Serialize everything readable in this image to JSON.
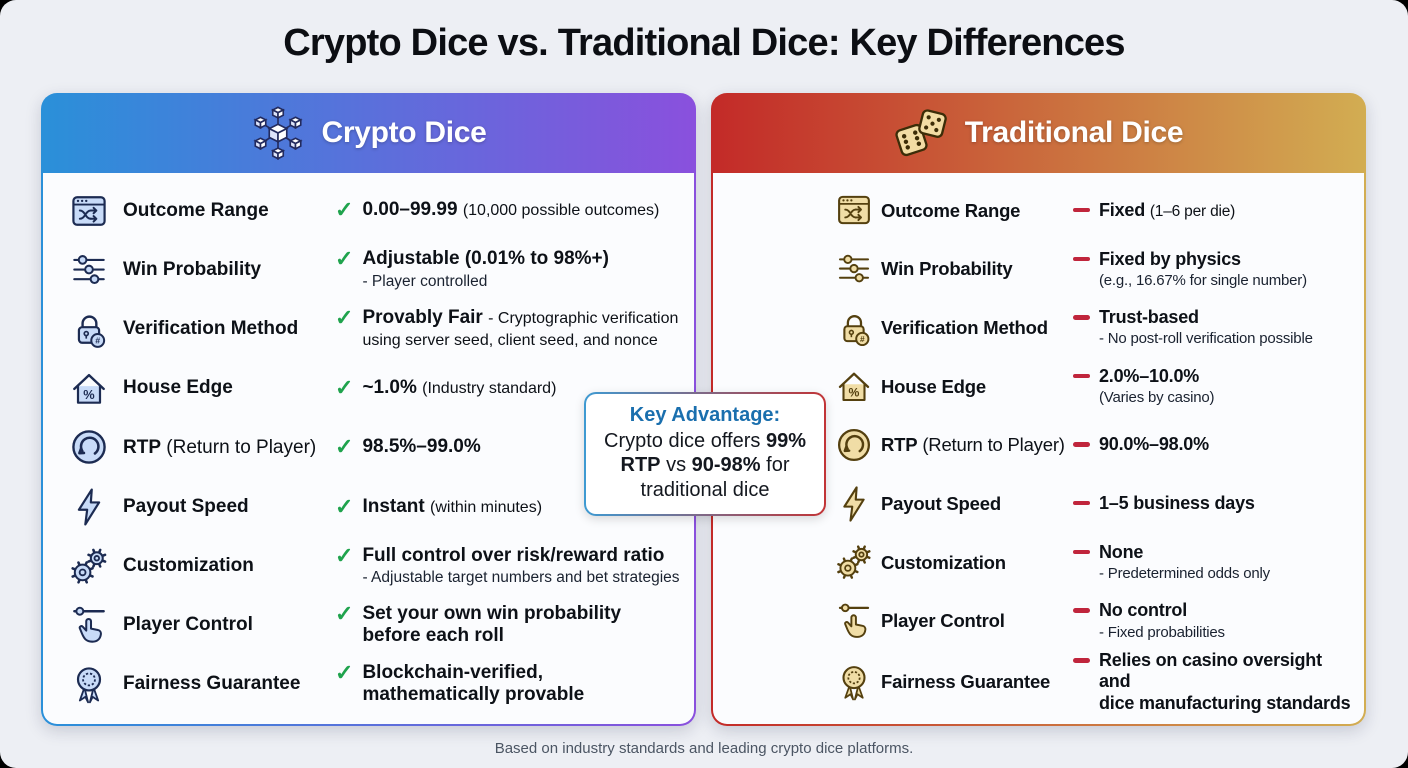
{
  "page": {
    "title": "Crypto Dice vs. Traditional Dice: Key Differences",
    "footer": "Based on industry standards and leading crypto dice platforms."
  },
  "colors": {
    "crypto_header_from": "#2a90d9",
    "crypto_header_to": "#8a50dd",
    "traditional_header_from": "#c32a28",
    "traditional_header_to": "#d2ad52",
    "check_green": "#1fa34d",
    "dash_red": "#c0253c",
    "callout_blue": "#1a6fae",
    "callout_border_from": "#3e9ad2",
    "callout_border_to": "#c23436",
    "crypto_icon_stroke": "#1c2b52",
    "crypto_icon_fill": "#c8dbf8",
    "traditional_icon_stroke": "#54400f",
    "traditional_icon_fill": "#f0dda6"
  },
  "callout": {
    "title": "Key Advantage:",
    "segments": [
      {
        "text": "Crypto dice offers ",
        "bold": false
      },
      {
        "text": "99% RTP",
        "bold": true
      },
      {
        "text": " vs ",
        "bold": false
      },
      {
        "text": "90-98%",
        "bold": true
      },
      {
        "text": " for traditional dice",
        "bold": false
      }
    ]
  },
  "cards": [
    {
      "title": "Crypto Dice",
      "header_icon": "blockchain-icon",
      "marker": "check",
      "rows": [
        {
          "icon": "shuffle-window-icon",
          "label": "Outcome Range",
          "main": "0.00–99.99",
          "inline": "(10,000 possible outcomes)"
        },
        {
          "icon": "sliders-icon",
          "label": "Win Probability",
          "main": "Adjustable (0.01% to 98%+)",
          "sub": "- Player controlled"
        },
        {
          "icon": "lock-verification-icon",
          "label": "Verification Method",
          "main": "Provably Fair",
          "inline": "- Cryptographic verification using server seed, client seed, and nonce"
        },
        {
          "icon": "house-percent-icon",
          "label": "House Edge",
          "main": "~1.0%",
          "inline": "(Industry standard)"
        },
        {
          "icon": "return-arrow-icon",
          "label": "RTP",
          "label_note": " (Return to Player)",
          "main": "98.5%–99.0%"
        },
        {
          "icon": "lightning-icon",
          "label": "Payout Speed",
          "main": "Instant",
          "inline": "(within minutes)"
        },
        {
          "icon": "gears-icon",
          "label": "Customization",
          "main": "Full control over risk/reward ratio",
          "sub": "- Adjustable target numbers and bet strategies"
        },
        {
          "icon": "hand-slider-icon",
          "label": "Player Control",
          "main": "Set your own win probability",
          "main2": "before each roll"
        },
        {
          "icon": "ribbon-badge-icon",
          "label": "Fairness Guarantee",
          "main": "Blockchain-verified,",
          "main2": "mathematically provable"
        }
      ]
    },
    {
      "title": "Traditional Dice",
      "header_icon": "dice-icon",
      "marker": "dash",
      "rows": [
        {
          "icon": "shuffle-window-icon",
          "label": "Outcome Range",
          "main": "Fixed",
          "inline": "(1–6 per die)"
        },
        {
          "icon": "sliders-icon",
          "label": "Win Probability",
          "main": "Fixed by physics",
          "sub": "(e.g., 16.67% for single number)"
        },
        {
          "icon": "lock-verification-icon",
          "label": "Verification Method",
          "main": "Trust-based",
          "sub": "- No post-roll verification possible"
        },
        {
          "icon": "house-percent-icon",
          "label": "House Edge",
          "main": "2.0%–10.0%",
          "sub": "(Varies by casino)"
        },
        {
          "icon": "return-arrow-icon",
          "label": "RTP",
          "label_note": " (Return to Player)",
          "main": "90.0%–98.0%"
        },
        {
          "icon": "lightning-icon",
          "label": "Payout Speed",
          "main": "1–5 business days"
        },
        {
          "icon": "gears-icon",
          "label": "Customization",
          "main": "None",
          "sub": "- Predetermined odds only"
        },
        {
          "icon": "hand-slider-icon",
          "label": "Player Control",
          "main": "No control",
          "sub": "- Fixed probabilities"
        },
        {
          "icon": "ribbon-badge-icon",
          "label": "Fairness Guarantee",
          "main": "Relies on casino oversight and",
          "main2": "dice manufacturing standards"
        }
      ]
    }
  ]
}
